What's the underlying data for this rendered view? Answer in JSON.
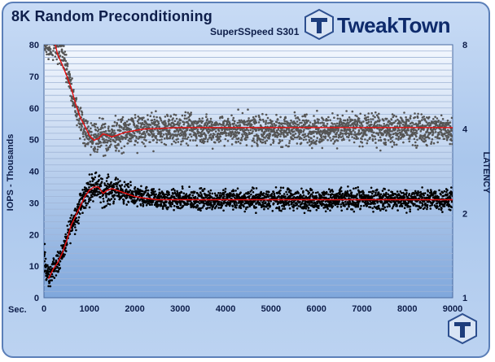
{
  "header": {
    "title": "8K Random Preconditioning",
    "subtitle": "SuperSSpeed S301",
    "brand": "TweakTown"
  },
  "colors": {
    "plot_bg_top": "#f4f8fe",
    "plot_bg_bottom": "#7fa7dc",
    "iops_points": "#000000",
    "latency_points": "#555555",
    "trend_line": "#e81010",
    "grid": "#9fb4d6"
  },
  "chart_data": {
    "type": "scatter",
    "title": "8K Random Preconditioning",
    "subtitle": "SuperSSpeed S301",
    "xlabel": "Sec.",
    "ylabel": "IOPS - Thousands",
    "y2label": "LATENCY",
    "xlim": [
      0,
      9000
    ],
    "ylim": [
      0,
      80
    ],
    "y2lim": [
      1,
      8
    ],
    "y2scale": "log",
    "x_ticks": [
      0,
      1000,
      2000,
      3000,
      4000,
      5000,
      6000,
      7000,
      8000,
      9000
    ],
    "y_ticks": [
      0,
      10,
      20,
      30,
      40,
      50,
      60,
      70,
      80
    ],
    "y2_ticks": [
      1,
      2,
      4,
      8
    ],
    "grid": true,
    "legend": "none",
    "series": [
      {
        "axis": "left",
        "style": "points",
        "color": "#000000",
        "x": [
          0,
          100,
          200,
          300,
          400,
          500,
          600,
          700,
          800,
          900,
          1000,
          1100,
          1200,
          1300,
          1400,
          1500,
          1600,
          1800,
          2000,
          2200,
          2500,
          3000,
          4000,
          5000,
          6000,
          7000,
          8000,
          9000
        ],
        "values": [
          12,
          6,
          9,
          11,
          14,
          18,
          23,
          26,
          29,
          32,
          34,
          36,
          35,
          33,
          34,
          34,
          34,
          33,
          32,
          31.5,
          31,
          31,
          31,
          31,
          31,
          31,
          31,
          31
        ],
        "spread": [
          6,
          3,
          3,
          3,
          3,
          3,
          4,
          4,
          4,
          4,
          4,
          4,
          4,
          4,
          4,
          4,
          3,
          3,
          3,
          3,
          3,
          3,
          3,
          3,
          3,
          3,
          3,
          3
        ]
      },
      {
        "axis": "right",
        "style": "points",
        "color": "#555555",
        "x": [
          0,
          100,
          200,
          300,
          400,
          500,
          600,
          700,
          800,
          900,
          1000,
          1100,
          1200,
          1300,
          1400,
          1500,
          1600,
          1800,
          2000,
          2200,
          2500,
          3000,
          4000,
          5000,
          6000,
          7000,
          8000,
          9000
        ],
        "values": [
          8,
          8,
          8,
          8,
          7.5,
          6.5,
          5.5,
          4.8,
          4.3,
          4.0,
          3.8,
          3.7,
          3.75,
          3.8,
          3.75,
          3.8,
          3.85,
          3.9,
          3.95,
          4.0,
          4.0,
          4.0,
          4.0,
          4.0,
          4.0,
          4.0,
          4.0,
          4.0
        ],
        "spread": [
          1,
          1,
          1,
          1,
          0.9,
          0.8,
          0.6,
          0.5,
          0.45,
          0.45,
          0.45,
          0.45,
          0.45,
          0.45,
          0.45,
          0.45,
          0.45,
          0.45,
          0.45,
          0.45,
          0.45,
          0.45,
          0.45,
          0.45,
          0.45,
          0.45,
          0.45,
          0.45
        ]
      },
      {
        "axis": "left",
        "style": "line",
        "color": "#e81010",
        "x": [
          100,
          200,
          300,
          400,
          500,
          600,
          700,
          800,
          900,
          1000,
          1100,
          1200,
          1300,
          1400,
          1500,
          1600,
          1800,
          2000,
          2200,
          2500,
          3000,
          4000,
          5000,
          6000,
          7000,
          8000,
          9000
        ],
        "values": [
          6,
          9,
          11,
          14,
          18,
          23,
          26,
          29,
          32,
          34,
          35,
          35,
          33,
          34,
          34.5,
          34,
          33,
          32,
          31.5,
          31,
          31,
          31,
          31,
          31,
          31,
          31,
          31
        ]
      },
      {
        "axis": "right",
        "style": "line",
        "color": "#e81010",
        "x": [
          250,
          300,
          350,
          400,
          500,
          600,
          700,
          800,
          900,
          1000,
          1100,
          1200,
          1300,
          1400,
          1500,
          1600,
          1800,
          2000,
          2200,
          2500,
          3000,
          4000,
          5000,
          6000,
          7000,
          8000,
          9000
        ],
        "values": [
          8,
          7.4,
          7.1,
          6.8,
          6.2,
          5.6,
          4.9,
          4.4,
          4.1,
          3.8,
          3.65,
          3.7,
          3.85,
          3.8,
          3.75,
          3.8,
          3.9,
          3.95,
          4.0,
          4.02,
          4.05,
          4.05,
          4.05,
          4.05,
          4.05,
          4.05,
          4.05
        ]
      }
    ]
  }
}
